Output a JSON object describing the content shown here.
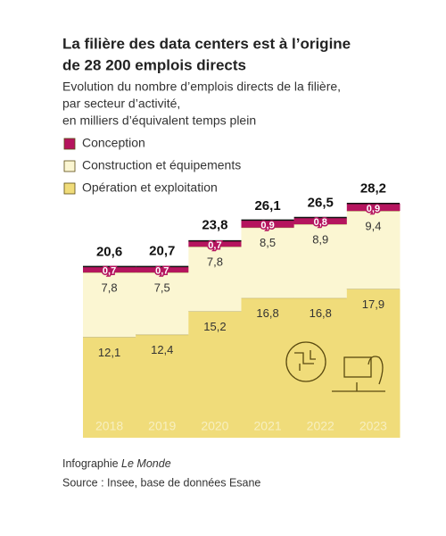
{
  "chart_data": {
    "type": "stacked-step-area",
    "title": [
      "La filière des data centers est à l’origine",
      "de 28 200 emplois directs"
    ],
    "subtitle": [
      "Evolution du nombre d’emplois directs de la filière,",
      "par secteur d’activité,",
      "en milliers d’équivalent temps plein"
    ],
    "categories": [
      "2018",
      "2019",
      "2020",
      "2021",
      "2022",
      "2023"
    ],
    "series": [
      {
        "name": "Opération et exploitation",
        "color": "#f0dc7a",
        "values": [
          12.1,
          12.4,
          15.2,
          16.8,
          16.8,
          17.9
        ],
        "value_labels": [
          "12,1",
          "12,4",
          "15,2",
          "16,8",
          "16,8",
          "17,9"
        ]
      },
      {
        "name": "Construction et équipements",
        "color": "#fbf6d2",
        "values": [
          7.8,
          7.5,
          7.8,
          8.5,
          8.9,
          9.4
        ],
        "value_labels": [
          "7,8",
          "7,5",
          "7,8",
          "8,5",
          "8,9",
          "9,4"
        ]
      },
      {
        "name": "Conception",
        "color": "#b5145e",
        "values": [
          0.7,
          0.7,
          0.7,
          0.9,
          0.8,
          0.9
        ],
        "value_labels": [
          "0,7",
          "0,7",
          "0,7",
          "0,9",
          "0,8",
          "0,9"
        ]
      }
    ],
    "totals": {
      "values": [
        20.6,
        20.7,
        23.8,
        26.1,
        26.5,
        28.2
      ],
      "value_labels": [
        "20,6",
        "20,7",
        "23,8",
        "26,1",
        "26,5",
        "28,2"
      ]
    },
    "ylim": [
      0,
      30
    ],
    "credit": {
      "text": "Infographie",
      "publisher": "Le Monde"
    },
    "source": "Source : Insee, base de données Esane"
  }
}
